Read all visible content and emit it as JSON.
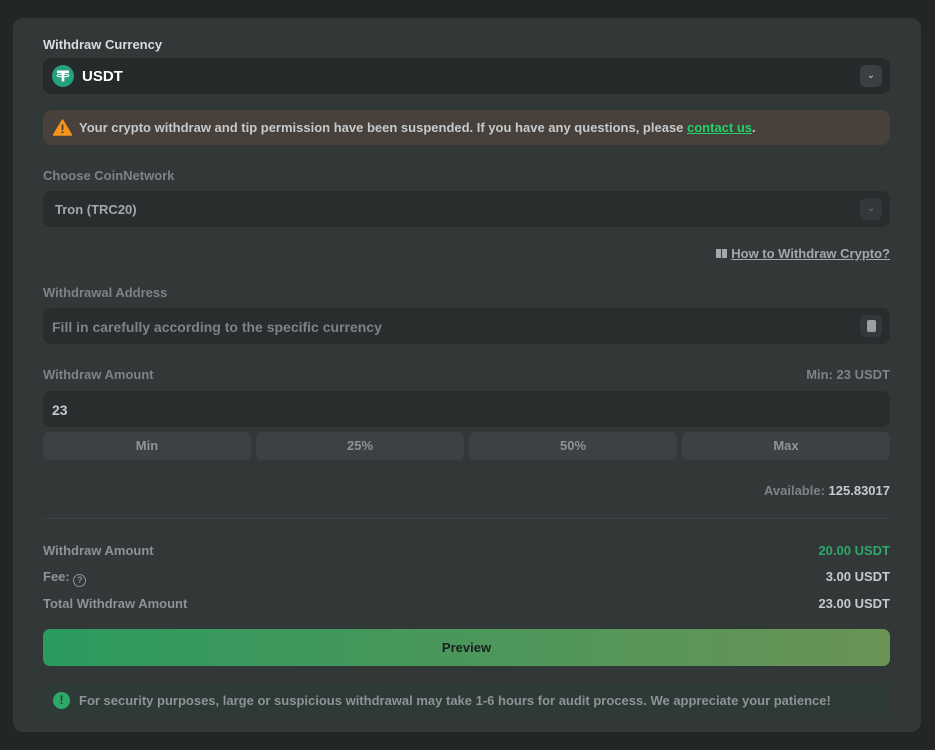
{
  "currency": {
    "label": "Withdraw Currency",
    "selected": "USDT",
    "icon": "tether-icon"
  },
  "warning": {
    "text": "Your crypto withdraw and tip permission have been suspended. If you have any questions, please ",
    "link": "contact us",
    "end": ".",
    "icon": "warning-triangle-icon"
  },
  "network": {
    "label": "Choose CoinNetwork",
    "selected": "Tron (TRC20)"
  },
  "help_link": "How to Withdraw Crypto?",
  "address": {
    "label": "Withdrawal Address",
    "placeholder": "Fill in carefully according to the specific currency"
  },
  "amount": {
    "label": "Withdraw Amount",
    "min": "Min: 23 USDT",
    "value": "23",
    "buttons": [
      "Min",
      "25%",
      "50%",
      "Max"
    ],
    "available_label": "Available:",
    "available": "125.83017"
  },
  "summary": {
    "withdraw_label": "Withdraw Amount",
    "withdraw_value": "20.00 USDT",
    "fee_label": "Fee:",
    "fee_value": "3.00 USDT",
    "total_label": "Total Withdraw Amount",
    "total_value": "23.00 USDT"
  },
  "preview": "Preview",
  "notice": "For security purposes, large or suspicious withdrawal may take 1-6 hours for audit process. We appreciate your patience!",
  "colors": {
    "accent": "#1fd36b",
    "success": "#2ea86a",
    "warning": "#f7931a"
  }
}
